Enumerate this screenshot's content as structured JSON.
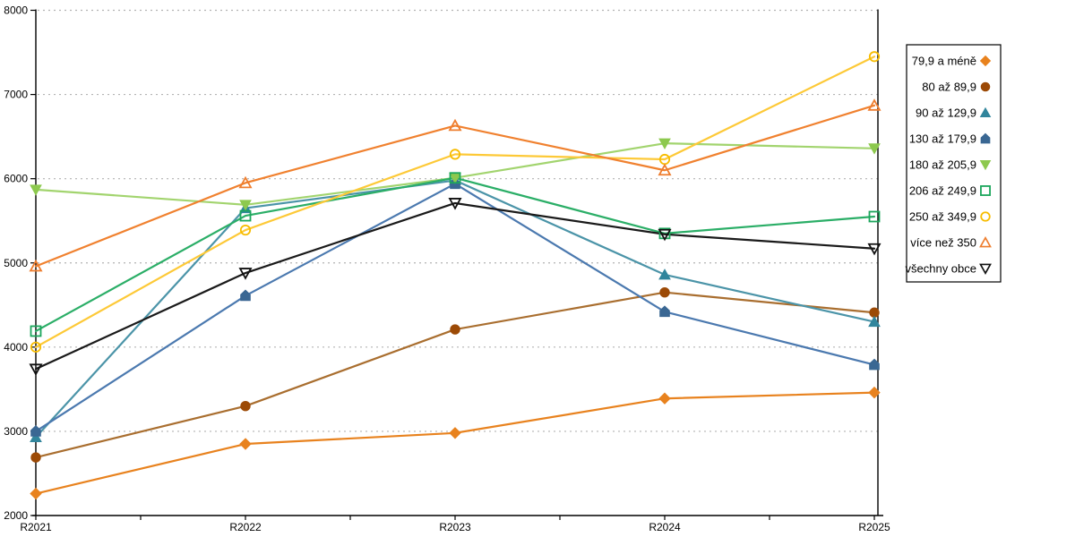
{
  "chart_data": {
    "type": "line",
    "title": "",
    "xlabel": "",
    "ylabel": "",
    "categories": [
      "R2021",
      "R2022",
      "R2023",
      "R2024",
      "R2025"
    ],
    "ylim": [
      2000,
      8000
    ],
    "ytick_step": 1000,
    "ytick_labels": [
      "2000",
      "3000",
      "4000",
      "5000",
      "6000",
      "7000",
      "8000"
    ],
    "grid": "dotted-horizontal",
    "legend_position": "right",
    "minor_x_ticks_between_labels": 1,
    "series": [
      {
        "name": "79,9 a méně",
        "marker": "diamond",
        "filled": true,
        "color": "#E8821E",
        "line_color": "#E8821E",
        "values": [
          2260,
          2850,
          2980,
          3390,
          3460
        ]
      },
      {
        "name": "80 až 89,9",
        "marker": "circle",
        "filled": true,
        "color": "#9C4A06",
        "line_color": "#A96E2F",
        "values": [
          2690,
          3300,
          4210,
          4650,
          4410
        ]
      },
      {
        "name": "90 až 129,9",
        "marker": "triangle-up",
        "filled": true,
        "color": "#31859C",
        "line_color": "#4B94A8",
        "values": [
          2930,
          5650,
          5980,
          4860,
          4300
        ]
      },
      {
        "name": "130 až 179,9",
        "marker": "pentagon-up",
        "filled": true,
        "color": "#3A6793",
        "line_color": "#4B79AF",
        "values": [
          3000,
          4610,
          5940,
          4420,
          3790
        ]
      },
      {
        "name": "180 až 205,9",
        "marker": "triangle-down",
        "filled": true,
        "color": "#8DC94E",
        "line_color": "#A2D46E",
        "values": [
          5870,
          5690,
          6010,
          6420,
          6360
        ]
      },
      {
        "name": "206 až 249,9",
        "marker": "square-open",
        "filled": false,
        "color": "#1CA65C",
        "line_color": "#2BAE67",
        "values": [
          4190,
          5560,
          6010,
          5350,
          5550
        ]
      },
      {
        "name": "250 až 349,9",
        "marker": "circle-open",
        "filled": false,
        "color": "#F7BC00",
        "line_color": "#FDC937",
        "values": [
          4000,
          5390,
          6290,
          6230,
          7450
        ]
      },
      {
        "name": "více než 350",
        "marker": "triangle-open",
        "filled": false,
        "color": "#EE7D2E",
        "line_color": "#F0812F",
        "values": [
          4960,
          5950,
          6630,
          6100,
          6870
        ]
      },
      {
        "name": "všechny obce",
        "marker": "triangle-down-open",
        "filled": false,
        "color": "#111111",
        "line_color": "#1A1A1A",
        "values": [
          3740,
          4880,
          5710,
          5340,
          5170
        ]
      }
    ],
    "colors": {
      "axis": "#000000",
      "gridline": "#b3b3b3",
      "legend_border": "#000000",
      "background": "#ffffff"
    }
  }
}
